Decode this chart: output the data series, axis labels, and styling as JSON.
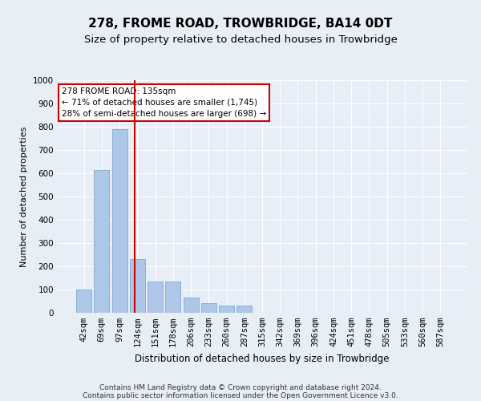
{
  "title": "278, FROME ROAD, TROWBRIDGE, BA14 0DT",
  "subtitle": "Size of property relative to detached houses in Trowbridge",
  "xlabel": "Distribution of detached houses by size in Trowbridge",
  "ylabel": "Number of detached properties",
  "categories": [
    "42sqm",
    "69sqm",
    "97sqm",
    "124sqm",
    "151sqm",
    "178sqm",
    "206sqm",
    "233sqm",
    "260sqm",
    "287sqm",
    "315sqm",
    "342sqm",
    "369sqm",
    "396sqm",
    "424sqm",
    "451sqm",
    "478sqm",
    "505sqm",
    "533sqm",
    "560sqm",
    "587sqm"
  ],
  "values": [
    100,
    615,
    790,
    230,
    135,
    135,
    65,
    40,
    30,
    30,
    0,
    0,
    0,
    0,
    0,
    0,
    0,
    0,
    0,
    0,
    0
  ],
  "bar_color": "#aec6e8",
  "bar_edge_color": "#7aadd4",
  "vline_color": "#cc0000",
  "vline_pos": 2.85,
  "annotation_line1": "278 FROME ROAD: 135sqm",
  "annotation_line2": "← 71% of detached houses are smaller (1,745)",
  "annotation_line3": "28% of semi-detached houses are larger (698) →",
  "annotation_box_color": "#ffffff",
  "annotation_box_edge": "#cc0000",
  "ylim": [
    0,
    1000
  ],
  "yticks": [
    0,
    100,
    200,
    300,
    400,
    500,
    600,
    700,
    800,
    900,
    1000
  ],
  "bg_color": "#e8eef5",
  "plot_bg_color": "#e8eef8",
  "footer1": "Contains HM Land Registry data © Crown copyright and database right 2024.",
  "footer2": "Contains public sector information licensed under the Open Government Licence v3.0.",
  "title_fontsize": 11,
  "subtitle_fontsize": 9.5,
  "xlabel_fontsize": 8.5,
  "ylabel_fontsize": 8,
  "tick_fontsize": 7.5,
  "annotation_fontsize": 7.5,
  "footer_fontsize": 6.5
}
